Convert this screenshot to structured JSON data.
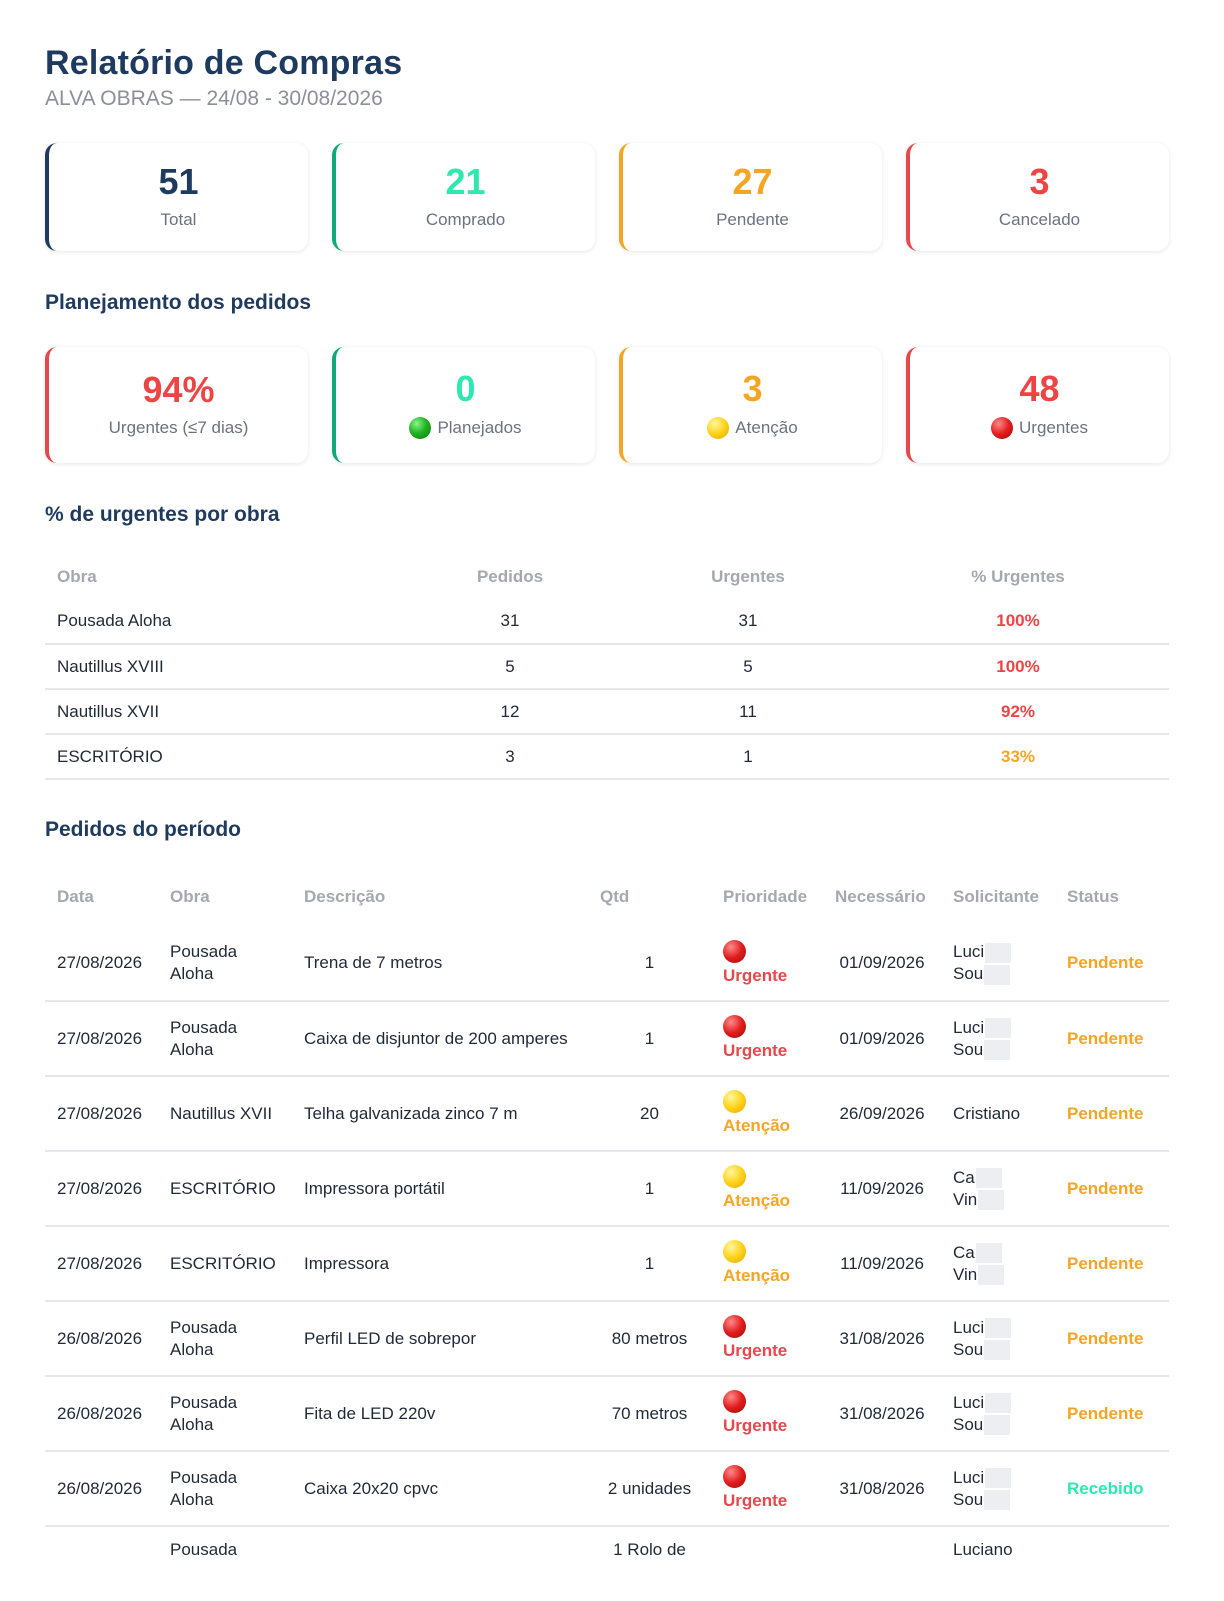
{
  "header": {
    "title": "Relatório de Compras",
    "subtitle": "ALVA OBRAS — 24/08 - 30/08/2026"
  },
  "summary": [
    {
      "value": "51",
      "label": "Total",
      "color": "#1e3a5f"
    },
    {
      "value": "21",
      "label": "Comprado",
      "color": "#2ee8b0"
    },
    {
      "value": "27",
      "label": "Pendente",
      "color": "#f5a524"
    },
    {
      "value": "3",
      "label": "Cancelado",
      "color": "#ef4444"
    }
  ],
  "planning": {
    "title": "Planejamento dos pedidos",
    "cards": [
      {
        "value": "94%",
        "label": "Urgentes (≤7 dias)"
      },
      {
        "value": "0",
        "label": "Planejados",
        "icon": "green-circle-icon"
      },
      {
        "value": "3",
        "label": "Atenção",
        "icon": "yellow-circle-icon"
      },
      {
        "value": "48",
        "label": "Urgentes",
        "icon": "red-circle-icon"
      }
    ]
  },
  "by_site": {
    "title": "% de urgentes por obra",
    "headers": [
      "Obra",
      "Pedidos",
      "Urgentes",
      "% Urgentes"
    ],
    "rows": [
      {
        "obra": "Pousada Aloha",
        "pedidos": "31",
        "urgentes": "31",
        "pct": "100%"
      },
      {
        "obra": "Nautillus XVIII",
        "pedidos": "5",
        "urgentes": "5",
        "pct": "100%"
      },
      {
        "obra": "Nautillus XVII",
        "pedidos": "12",
        "urgentes": "11",
        "pct": "92%"
      },
      {
        "obra": "ESCRITÓRIO",
        "pedidos": "3",
        "urgentes": "1",
        "pct": "33%"
      }
    ]
  },
  "orders": {
    "title": "Pedidos do período",
    "headers": [
      "Data",
      "Obra",
      "Descrição",
      "Qtd",
      "Prioridade",
      "Necessário",
      "Solicitante",
      "Status"
    ],
    "rows": [
      {
        "data": "27/08/2026",
        "obra": "Pousada Aloha",
        "desc": "Trena de 7 metros",
        "qtd": "1",
        "prio": "Urgente",
        "nec": "01/09/2026",
        "sol1": "Luci",
        "sol2": "Sou",
        "status": "Pendente"
      },
      {
        "data": "27/08/2026",
        "obra": "Pousada Aloha",
        "desc": "Caixa de disjuntor de 200 amperes",
        "qtd": "1",
        "prio": "Urgente",
        "nec": "01/09/2026",
        "sol1": "Luci",
        "sol2": "Sou",
        "status": "Pendente"
      },
      {
        "data": "27/08/2026",
        "obra": "Nautillus XVII",
        "desc": "Telha galvanizada zinco 7 m",
        "qtd": "20",
        "prio": "Atenção",
        "nec": "26/09/2026",
        "sol1": "Cristiano",
        "sol2": "",
        "status": "Pendente"
      },
      {
        "data": "27/08/2026",
        "obra": "ESCRITÓRIO",
        "desc": "Impressora portátil",
        "qtd": "1",
        "prio": "Atenção",
        "nec": "11/09/2026",
        "sol1": "Ca",
        "sol2": "Vin",
        "status": "Pendente"
      },
      {
        "data": "27/08/2026",
        "obra": "ESCRITÓRIO",
        "desc": "Impressora",
        "qtd": "1",
        "prio": "Atenção",
        "nec": "11/09/2026",
        "sol1": "Ca",
        "sol2": "Vin",
        "status": "Pendente"
      },
      {
        "data": "26/08/2026",
        "obra": "Pousada Aloha",
        "desc": "Perfil LED de sobrepor",
        "qtd": "80 metros",
        "prio": "Urgente",
        "nec": "31/08/2026",
        "sol1": "Luci",
        "sol2": "Sou",
        "status": "Pendente"
      },
      {
        "data": "26/08/2026",
        "obra": "Pousada Aloha",
        "desc": "Fita de LED 220v",
        "qtd": "70 metros",
        "prio": "Urgente",
        "nec": "31/08/2026",
        "sol1": "Luci",
        "sol2": "Sou",
        "status": "Pendente"
      },
      {
        "data": "26/08/2026",
        "obra": "Pousada Aloha",
        "desc": "Caixa 20x20 cpvc",
        "qtd": "2 unidades",
        "prio": "Urgente",
        "nec": "31/08/2026",
        "sol1": "Luci",
        "sol2": "Sou",
        "status": "Recebido"
      },
      {
        "data": "",
        "obra": "Pousada",
        "desc": "",
        "qtd": "1 Rolo de",
        "prio": "",
        "nec": "",
        "sol1": "Luciano",
        "sol2": "",
        "status": ""
      }
    ]
  }
}
